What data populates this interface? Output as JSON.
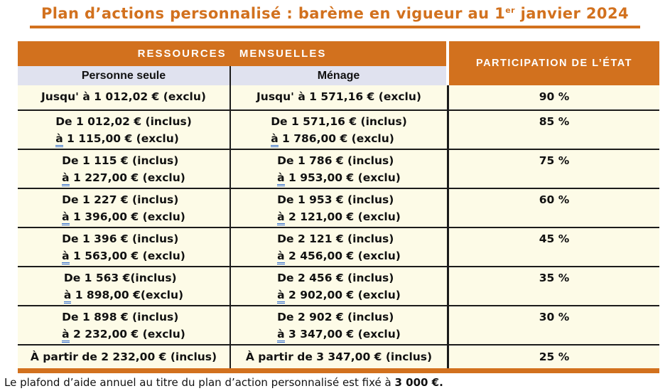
{
  "title": {
    "text_before_sup": "Plan d’actions personnalisé : barème en vigueur au 1",
    "sup": "er",
    "text_after_sup": " janvier 2024"
  },
  "header": {
    "resources": "RESSOURCES MENSUELLES",
    "participation": "PARTICIPATION DE L’ÉTAT",
    "person_single": "Personne seule",
    "household": "Ménage"
  },
  "rows": [
    {
      "single_lines": [
        "Jusqu' à 1 012,02 € (exclu)"
      ],
      "household_lines": [
        "Jusqu' à 1 571,16 € (exclu)"
      ],
      "participation": "90 %"
    },
    {
      "single_lines": [
        "De 1 012,02 € (inclus)",
        "à 1 115,00 € (exclu)"
      ],
      "household_lines": [
        "De 1 571,16 € (inclus)",
        "à 1 786,00 € (exclu)"
      ],
      "participation": "85 %"
    },
    {
      "single_lines": [
        "De 1 115 € (inclus)",
        "à 1 227,00 € (exclu)"
      ],
      "household_lines": [
        "De 1 786 € (inclus)",
        "à 1 953,00 € (exclu)"
      ],
      "participation": "75 %"
    },
    {
      "single_lines": [
        "De 1 227 € (inclus)",
        "à 1 396,00 € (exclu)"
      ],
      "household_lines": [
        "De 1 953 € (inclus)",
        "à 2 121,00 € (exclu)"
      ],
      "participation": "60 %"
    },
    {
      "single_lines": [
        "De 1 396 € (inclus)",
        "à 1 563,00 € (exclu)"
      ],
      "household_lines": [
        "De 2 121 € (inclus)",
        "à 2 456,00 € (exclu)"
      ],
      "participation": "45 %"
    },
    {
      "single_lines": [
        "De 1 563 €(inclus)",
        "à 1 898,00 €(exclu)"
      ],
      "household_lines": [
        "De 2 456 € (inclus)",
        "à 2 902,00 € (exclu)"
      ],
      "participation": "35 %"
    },
    {
      "single_lines": [
        "De 1 898 € (inclus)",
        "à 2 232,00 € (exclu)"
      ],
      "household_lines": [
        "De 2 902 € (inclus)",
        "à 3 347,00 € (exclu)"
      ],
      "participation": "30 %"
    },
    {
      "single_lines": [
        "À partir de 2 232,00 € (inclus)"
      ],
      "household_lines": [
        "À partir de 3 347,00 € (inclus)"
      ],
      "participation": "25 %"
    }
  ],
  "footer": {
    "text": "Le plafond d’aide annuel au titre du plan d’action personnalisé est fixé à ",
    "amount": "3 000 €."
  },
  "colors": {
    "accent_orange": "#D2711E",
    "subheader_lavender": "#E0E2EF",
    "row_cream": "#FDFBE7",
    "separator_black": "#1B1B1B",
    "grammar_underline_blue": "#2F6BCC"
  }
}
